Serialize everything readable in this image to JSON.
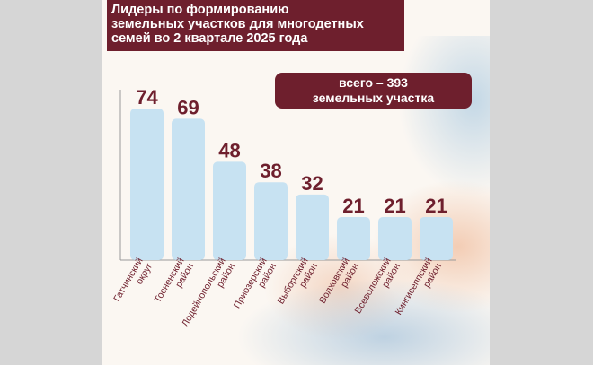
{
  "title": "Лидеры по формированию\nземельных участков для многодетных\nсемей во 2 квартале 2025 года",
  "total_note": "всего – 393\nземельных участка",
  "colors": {
    "bar": "#c7e2f2",
    "value_text": "#6e1f2d",
    "label_text": "#6e1f2d",
    "title_bg": "#6e1f2d"
  },
  "chart_data": {
    "type": "bar",
    "categories": [
      "Гатчинский округ",
      "Тосненский район",
      "Лодейнопольский район",
      "Приозерский район",
      "Выборгский район",
      "Волховский район",
      "Всеволожский район",
      "Кингисеппский район"
    ],
    "category_lines": [
      [
        "Гатчинский",
        "округ"
      ],
      [
        "Тосненский",
        "район"
      ],
      [
        "Лодейнопольский",
        "район"
      ],
      [
        "Приозерский",
        "район"
      ],
      [
        "Выборгский",
        "район"
      ],
      [
        "Волховский",
        "район"
      ],
      [
        "Всеволожский",
        "район"
      ],
      [
        "Кингисеппский",
        "район"
      ]
    ],
    "values": [
      74,
      69,
      48,
      38,
      32,
      21,
      21,
      21
    ],
    "title": "Лидеры по формированию земельных участков для многодетных семей во 2 квартале 2025 года",
    "xlabel": "",
    "ylabel": "",
    "ylim": [
      0,
      74
    ],
    "grid": false,
    "data_labels": true
  }
}
